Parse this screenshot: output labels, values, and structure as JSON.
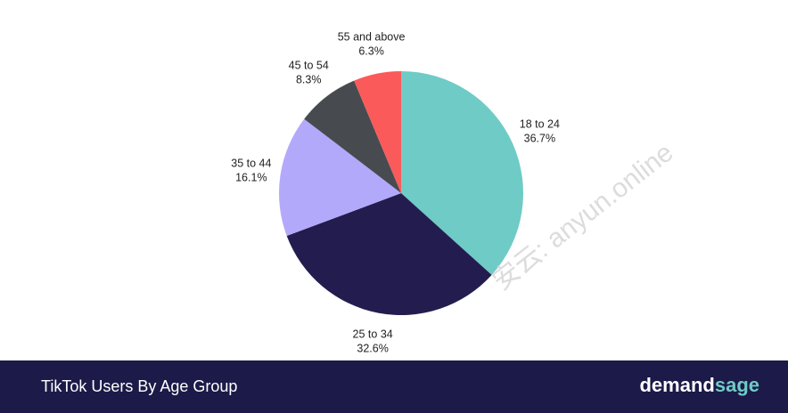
{
  "chart_data": {
    "type": "pie",
    "title": "TikTok Users By Age Group",
    "categories": [
      "18 to 24",
      "25 to 34",
      "35 to 44",
      "45 to 54",
      "55 and above"
    ],
    "values": [
      36.7,
      32.6,
      16.1,
      8.3,
      6.3
    ],
    "value_labels": [
      "36.7%",
      "32.6%",
      "16.1%",
      "8.3%",
      "6.3%"
    ],
    "colors": [
      "#6fcbc6",
      "#231d4f",
      "#b3a9fb",
      "#474b50",
      "#fb5a5a"
    ]
  },
  "footer": {
    "brand_start": "demand",
    "brand_end": "sage"
  },
  "watermark": "安云: anyun.online"
}
